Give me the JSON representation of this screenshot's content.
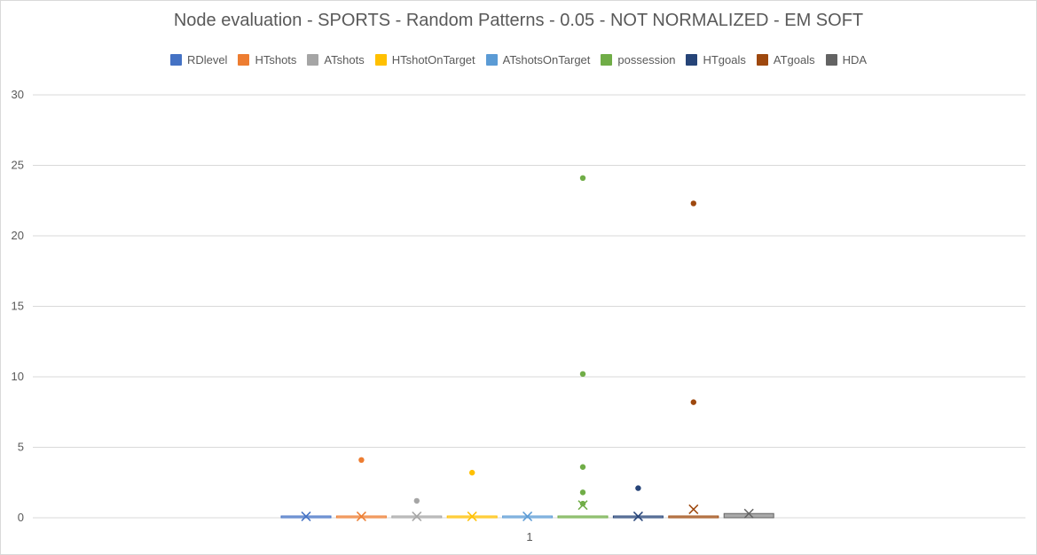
{
  "chart_data": {
    "type": "box",
    "title": "Node evaluation - SPORTS - Random Patterns - 0.05 - NOT NORMALIZED - EM SOFT",
    "xlabel": "",
    "ylabel": "",
    "categories": [
      "1"
    ],
    "ylim": [
      0,
      30
    ],
    "yticks": [
      "0",
      "5",
      "10",
      "15",
      "20",
      "25",
      "30"
    ],
    "grid": true,
    "legend_position": "top",
    "series": [
      {
        "name": "RDlevel",
        "color": "#4472c4",
        "box": 0.1,
        "mean": 0.1,
        "outliers": []
      },
      {
        "name": "HTshots",
        "color": "#ed7d31",
        "box": 0.1,
        "mean": 0.1,
        "outliers": [
          4.1
        ]
      },
      {
        "name": "ATshots",
        "color": "#a5a5a5",
        "box": 0.1,
        "mean": 0.1,
        "outliers": [
          1.2
        ]
      },
      {
        "name": "HTshotOnTarget",
        "color": "#ffc000",
        "box": 0.1,
        "mean": 0.1,
        "outliers": [
          3.2
        ]
      },
      {
        "name": "ATshotsOnTarget",
        "color": "#5b9bd5",
        "box": 0.1,
        "mean": 0.1,
        "outliers": []
      },
      {
        "name": "possession",
        "color": "#70ad47",
        "box": 0.05,
        "mean": 0.9,
        "outliers": [
          24.1,
          10.2,
          3.6,
          1.8,
          1.0
        ]
      },
      {
        "name": "HTgoals",
        "color": "#264478",
        "box": 0.1,
        "mean": 0.1,
        "outliers": [
          2.1
        ]
      },
      {
        "name": "ATgoals",
        "color": "#9e480e",
        "box": 0.05,
        "mean": 0.6,
        "outliers": [
          22.3,
          8.2
        ]
      },
      {
        "name": "HDA",
        "color": "#636363",
        "box": 0.3,
        "mean": 0.3,
        "outliers": []
      }
    ]
  }
}
